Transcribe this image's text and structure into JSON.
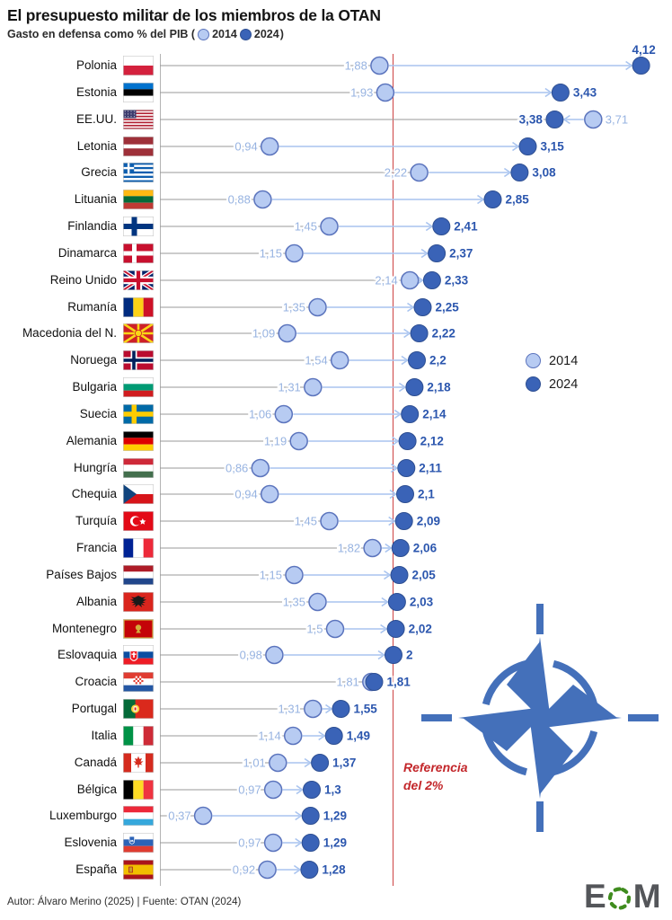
{
  "title": "El presupuesto militar de los miembros de la OTAN",
  "subtitle": {
    "prefix": "Gasto en defensa como % del PIB (",
    "year_2014": "2014",
    "year_2024": "2024",
    "suffix": ")"
  },
  "legend": {
    "year_2014": "2014",
    "year_2024": "2024"
  },
  "reference": {
    "line1": "Referencia",
    "line2": "del 2%"
  },
  "footer": {
    "credit": "Autor: Álvaro Merino (2025) | Fuente: OTAN (2024)"
  },
  "brand": {
    "letter_e": "E",
    "letter_m": "M"
  },
  "colors": {
    "dot_2014_fill": "#b7cbf2",
    "dot_2014_stroke": "#5b74bd",
    "dot_2024_fill": "#3a63b7",
    "dot_2024_stroke": "#2e4f92",
    "arrow": "#a9c4ef",
    "value_2014_text": "#97b3e1",
    "value_2024_text": "#2b56ae",
    "connector_gray": "#9a9a9a",
    "axis_gray": "#b3b3b3",
    "reference_red": "#cd4343",
    "reference_text_red": "#c3272b",
    "nato_blue": "#4470ba",
    "eom_green": "#3f8c1e",
    "eom_gray": "#54565a"
  },
  "chart_data": {
    "type": "dumbbell",
    "base_type": "scatter",
    "title": "El presupuesto militar de los miembros de la OTAN",
    "x_unit": "Gasto en defensa como % del PIB",
    "series_labels": [
      "2014",
      "2024"
    ],
    "x_reference": 2,
    "xlim": [
      0,
      4.4
    ],
    "grid": false,
    "legend_position": "middle-right",
    "rows": [
      {
        "country": "Polonia",
        "flag": "pl",
        "v2014": "1,88",
        "v2024": "4,12"
      },
      {
        "country": "Estonia",
        "flag": "ee",
        "v2014": "1,93",
        "v2024": "3,43"
      },
      {
        "country": "EE.UU.",
        "flag": "us",
        "v2014": "3,71",
        "v2024": "3,38"
      },
      {
        "country": "Letonia",
        "flag": "lv",
        "v2014": "0,94",
        "v2024": "3,15"
      },
      {
        "country": "Grecia",
        "flag": "gr",
        "v2014": "2,22",
        "v2024": "3,08"
      },
      {
        "country": "Lituania",
        "flag": "lt",
        "v2014": "0,88",
        "v2024": "2,85"
      },
      {
        "country": "Finlandia",
        "flag": "fi",
        "v2014": "1,45",
        "v2024": "2,41"
      },
      {
        "country": "Dinamarca",
        "flag": "dk",
        "v2014": "1,15",
        "v2024": "2,37"
      },
      {
        "country": "Reino Unido",
        "flag": "gb",
        "v2014": "2,14",
        "v2024": "2,33"
      },
      {
        "country": "Rumanía",
        "flag": "ro",
        "v2014": "1,35",
        "v2024": "2,25"
      },
      {
        "country": "Macedonia del N.",
        "flag": "mk",
        "v2014": "1,09",
        "v2024": "2,22"
      },
      {
        "country": "Noruega",
        "flag": "no",
        "v2014": "1,54",
        "v2024": "2,2"
      },
      {
        "country": "Bulgaria",
        "flag": "bg",
        "v2014": "1,31",
        "v2024": "2,18"
      },
      {
        "country": "Suecia",
        "flag": "se",
        "v2014": "1,06",
        "v2024": "2,14"
      },
      {
        "country": "Alemania",
        "flag": "de",
        "v2014": "1,19",
        "v2024": "2,12"
      },
      {
        "country": "Hungría",
        "flag": "hu",
        "v2014": "0,86",
        "v2024": "2,11"
      },
      {
        "country": "Chequia",
        "flag": "cz",
        "v2014": "0,94",
        "v2024": "2,1"
      },
      {
        "country": "Turquía",
        "flag": "tr",
        "v2014": "1,45",
        "v2024": "2,09"
      },
      {
        "country": "Francia",
        "flag": "fr",
        "v2014": "1,82",
        "v2024": "2,06"
      },
      {
        "country": "Países Bajos",
        "flag": "nl",
        "v2014": "1,15",
        "v2024": "2,05"
      },
      {
        "country": "Albania",
        "flag": "al",
        "v2014": "1,35",
        "v2024": "2,03"
      },
      {
        "country": "Montenegro",
        "flag": "me",
        "v2014": "1,5",
        "v2024": "2,02"
      },
      {
        "country": "Eslovaquia",
        "flag": "sk",
        "v2014": "0,98",
        "v2024": "2"
      },
      {
        "country": "Croacia",
        "flag": "hr",
        "v2014": "1,81",
        "v2024": "1,81"
      },
      {
        "country": "Portugal",
        "flag": "pt",
        "v2014": "1,31",
        "v2024": "1,55"
      },
      {
        "country": "Italia",
        "flag": "it",
        "v2014": "1,14",
        "v2024": "1,49"
      },
      {
        "country": "Canadá",
        "flag": "ca",
        "v2014": "1,01",
        "v2024": "1,37"
      },
      {
        "country": "Bélgica",
        "flag": "be",
        "v2014": "0,97",
        "v2024": "1,3"
      },
      {
        "country": "Luxemburgo",
        "flag": "lu",
        "v2014": "0,37",
        "v2024": "1,29"
      },
      {
        "country": "Eslovenia",
        "flag": "si",
        "v2014": "0,97",
        "v2024": "1,29"
      },
      {
        "country": "España",
        "flag": "es",
        "v2014": "0,92",
        "v2024": "1,28"
      }
    ]
  }
}
